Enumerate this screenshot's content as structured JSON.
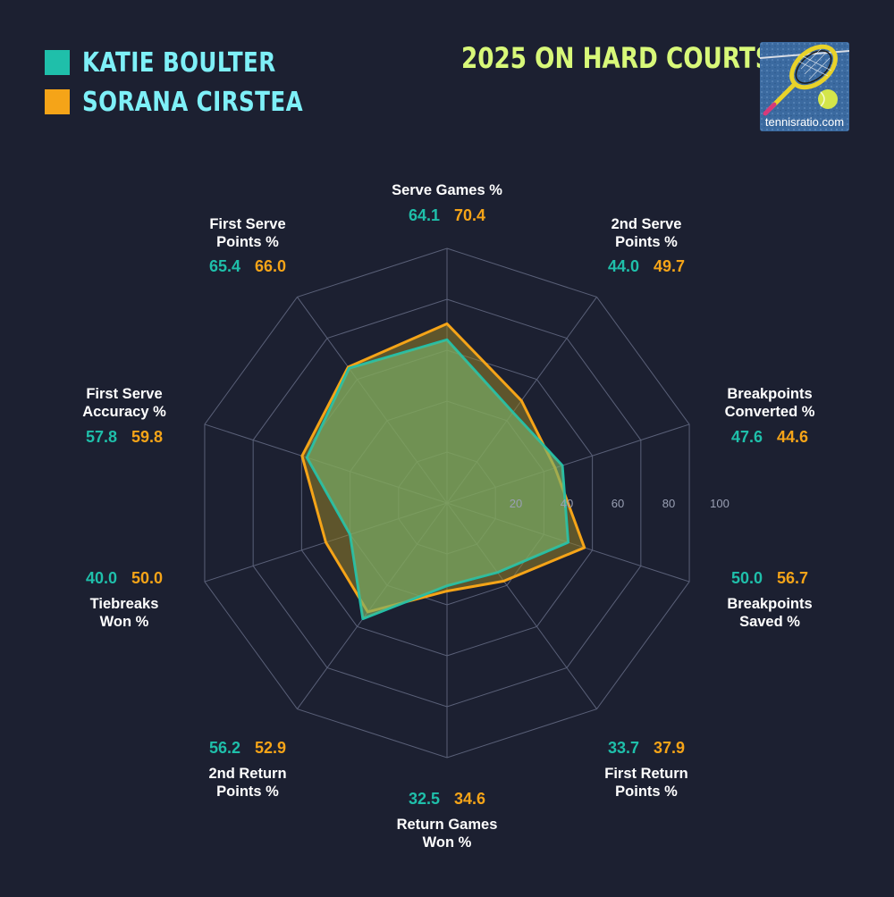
{
  "title": "2025 ON HARD COURTS",
  "logo": {
    "text": "tennisratio.com",
    "icon": "tennis-racket-ball-icon"
  },
  "colors": {
    "background": "#1c2031",
    "player1": "#1fbfaa",
    "player2": "#f5a418",
    "title": "#d8f879",
    "legend_text": "#7ef0f8"
  },
  "chart_data": {
    "type": "radar",
    "title": "2025 ON HARD COURTS",
    "range": [
      0,
      100
    ],
    "ticks": [
      20,
      40,
      60,
      80,
      100
    ],
    "tick_labels": [
      "20",
      "40",
      "60",
      "80",
      "100"
    ],
    "axes": [
      {
        "lines": [
          "Serve Games %"
        ]
      },
      {
        "lines": [
          "2nd Serve",
          "Points %"
        ]
      },
      {
        "lines": [
          "Breakpoints",
          "Converted %"
        ]
      },
      {
        "lines": [
          "Breakpoints",
          "Saved %"
        ]
      },
      {
        "lines": [
          "First Return",
          "Points %"
        ]
      },
      {
        "lines": [
          "Return Games",
          "Won %"
        ]
      },
      {
        "lines": [
          "2nd Return",
          "Points %"
        ]
      },
      {
        "lines": [
          "Tiebreaks",
          "Won %"
        ]
      },
      {
        "lines": [
          "First Serve",
          "Accuracy %"
        ]
      },
      {
        "lines": [
          "First Serve",
          "Points %"
        ]
      }
    ],
    "series": [
      {
        "name": "KATIE BOULTER",
        "color": "#1fbfaa",
        "values": [
          64.1,
          44.0,
          47.6,
          50.0,
          33.7,
          32.5,
          56.2,
          40.0,
          57.8,
          65.4
        ],
        "labels": [
          "64.1",
          "44.0",
          "47.6",
          "50.0",
          "33.7",
          "32.5",
          "56.2",
          "40.0",
          "57.8",
          "65.4"
        ]
      },
      {
        "name": "SORANA CIRSTEA",
        "color": "#f5a418",
        "values": [
          70.4,
          49.7,
          44.6,
          56.7,
          37.9,
          34.6,
          52.9,
          50.0,
          59.8,
          66.0
        ],
        "labels": [
          "70.4",
          "49.7",
          "44.6",
          "56.7",
          "37.9",
          "34.6",
          "52.9",
          "50.0",
          "59.8",
          "66.0"
        ]
      }
    ],
    "grid": true,
    "legend": "top-left"
  }
}
